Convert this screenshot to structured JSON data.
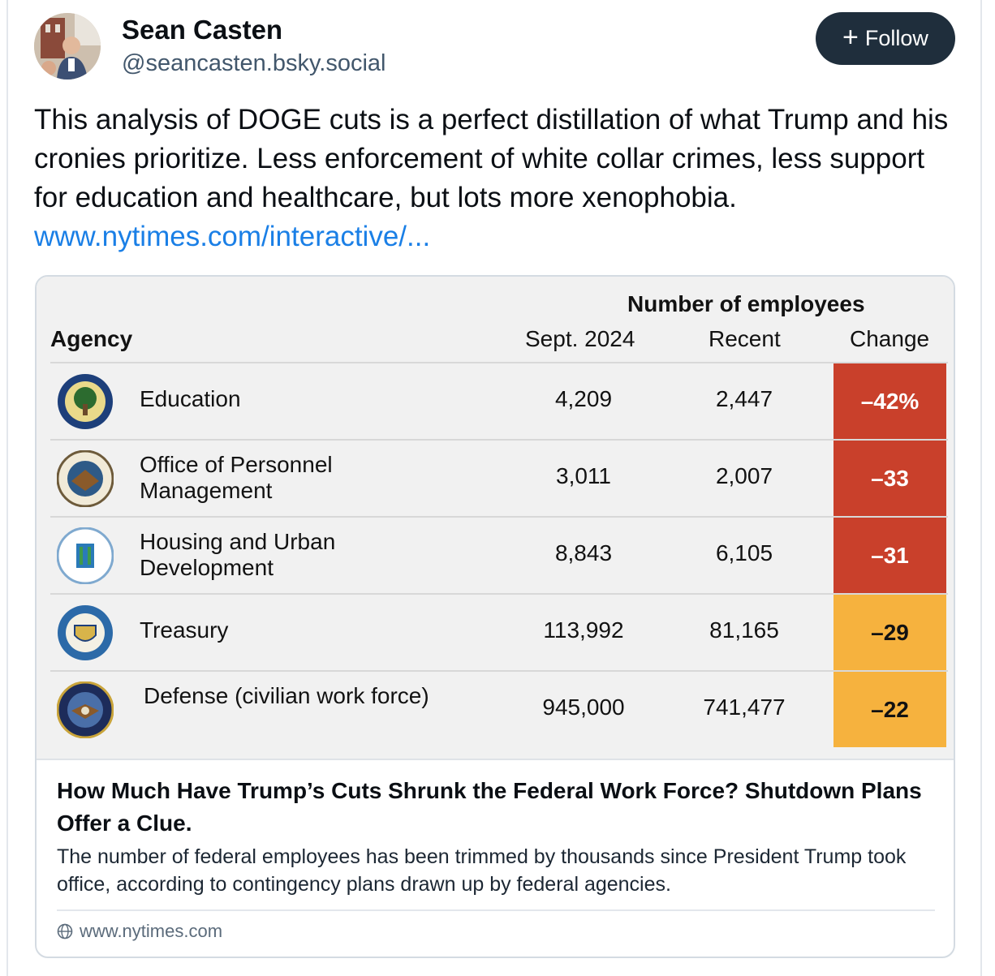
{
  "post": {
    "author_name": "Sean Casten",
    "author_handle": "@seancasten.bsky.social",
    "follow_label": "Follow",
    "text": "This analysis of DOGE cuts is a perfect distillation of what Trump and his cronies prioritize.  Less enforcement of white collar crimes, less support for education and healthcare, but lots more xenophobia.  ",
    "link_text": "www.nytimes.com/interactive/..."
  },
  "table": {
    "group_header": "Number of employees",
    "col_agency": "Agency",
    "col_sept": "Sept. 2024",
    "col_recent": "Recent",
    "col_change": "Change",
    "rows": [
      {
        "agency": "Education",
        "sept": "4,209",
        "recent": "2,447",
        "change": "–42%",
        "color": "#c9402b"
      },
      {
        "agency": "Office of Personnel Management",
        "sept": "3,011",
        "recent": "2,007",
        "change": "–33",
        "color": "#c9402b"
      },
      {
        "agency": "Housing and Urban Development",
        "sept": "8,843",
        "recent": "6,105",
        "change": "–31",
        "color": "#c9402b"
      },
      {
        "agency": "Treasury",
        "sept": "113,992",
        "recent": "81,165",
        "change": "–29",
        "color": "#f6b23e"
      },
      {
        "agency": "Defense (civilian work force)",
        "sept": "945,000",
        "recent": "741,477",
        "change": "–22",
        "color": "#f6b23e"
      }
    ]
  },
  "embed": {
    "title": "How Much Have Trump’s Cuts Shrunk the Federal Work Force? Shutdown Plans Offer a Clue.",
    "description": "The number of federal employees has been trimmed by thousands since President Trump took office, according to contingency plans drawn up by federal agencies.",
    "domain": "www.nytimes.com",
    "domain_icon": "globe-icon"
  },
  "colors": {
    "follow_bg": "#1f2e3c",
    "link": "#1a7fe6",
    "change_red": "#c9402b",
    "change_orange": "#f6b23e"
  }
}
